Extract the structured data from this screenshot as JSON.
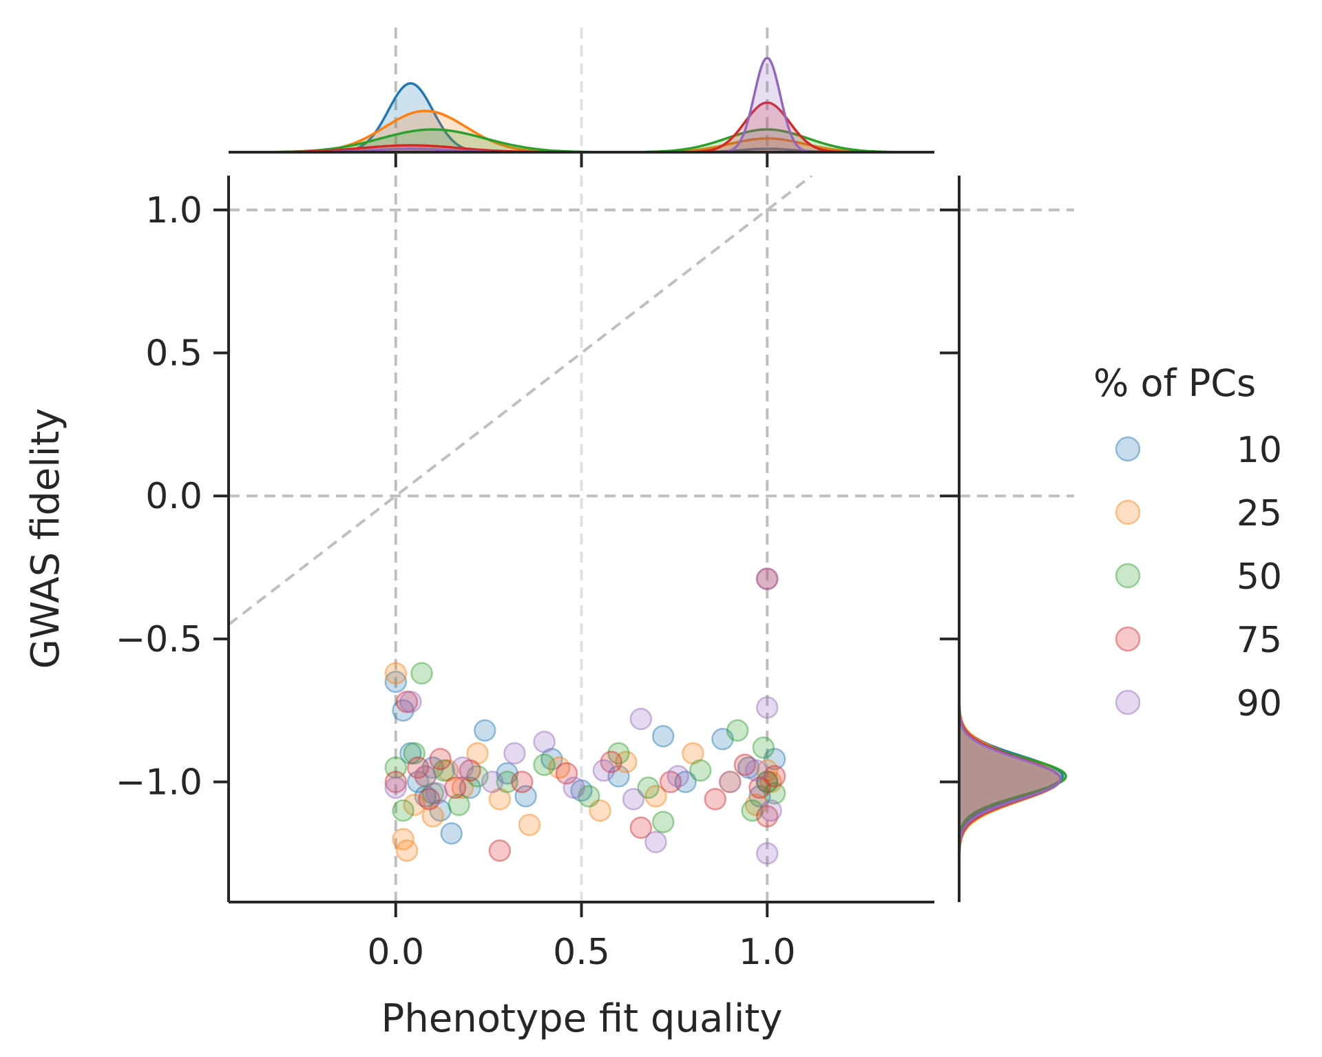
{
  "chart_data": {
    "type": "scatter",
    "xlabel": "Phenotype fit quality",
    "ylabel": "GWAS fidelity",
    "xlim": [
      -0.45,
      1.45
    ],
    "ylim": [
      -1.42,
      1.12
    ],
    "xticks": [
      0.0,
      0.5,
      1.0
    ],
    "xtick_labels": [
      "0.0",
      "0.5",
      "1.0"
    ],
    "yticks": [
      1.0,
      0.5,
      0.0,
      -0.5,
      -1.0
    ],
    "ytick_labels": [
      "1.0",
      "0.5",
      "0.0",
      "−0.5",
      "−1.0"
    ],
    "grid": false,
    "reference_lines": {
      "vertical_x": [
        0.0,
        0.5,
        1.0
      ],
      "horizontal_y": [
        1.0,
        0.0
      ],
      "diagonal": "y = x"
    },
    "legend": {
      "title": "% of PCs",
      "position": "right",
      "entries": [
        "10",
        "25",
        "50",
        "75",
        "90"
      ]
    },
    "colors": [
      "#1f77b4",
      "#ff7f0e",
      "#2ca02c",
      "#d62728",
      "#9467bd"
    ],
    "series": [
      {
        "name": "10",
        "x": [
          0.0,
          0.02,
          0.04,
          0.06,
          0.08,
          0.1,
          0.12,
          0.15,
          0.2,
          0.24,
          0.3,
          0.35,
          0.42,
          0.5,
          0.6,
          0.72,
          0.78,
          0.88,
          0.95,
          0.98,
          1.0,
          1.02
        ],
        "y": [
          -0.65,
          -0.75,
          -0.9,
          -1.0,
          -1.05,
          -0.95,
          -1.1,
          -1.18,
          -1.02,
          -0.82,
          -0.97,
          -1.05,
          -0.92,
          -1.03,
          -0.98,
          -0.84,
          -1.0,
          -0.85,
          -0.95,
          -1.05,
          -1.0,
          -0.92
        ],
        "kde_x_peak": 0.04,
        "kde_y_peak": -0.98
      },
      {
        "name": "25",
        "x": [
          0.0,
          0.02,
          0.03,
          0.05,
          0.08,
          0.1,
          0.14,
          0.18,
          0.22,
          0.28,
          0.36,
          0.44,
          0.55,
          0.62,
          0.7,
          0.8,
          0.9,
          0.97,
          1.0,
          1.01
        ],
        "y": [
          -0.62,
          -1.2,
          -1.24,
          -1.08,
          -0.98,
          -1.12,
          -0.96,
          -1.02,
          -0.9,
          -1.06,
          -1.15,
          -0.95,
          -1.1,
          -0.93,
          -1.05,
          -0.9,
          -1.0,
          -1.08,
          -0.96,
          -1.0
        ],
        "kde_x_peak": 0.08,
        "kde_y_peak": -0.99
      },
      {
        "name": "50",
        "x": [
          0.0,
          0.02,
          0.05,
          0.07,
          0.1,
          0.13,
          0.17,
          0.22,
          0.3,
          0.4,
          0.52,
          0.6,
          0.68,
          0.72,
          0.82,
          0.92,
          0.96,
          0.99,
          1.0,
          1.02
        ],
        "y": [
          -0.95,
          -1.1,
          -0.9,
          -0.62,
          -1.04,
          -0.96,
          -1.08,
          -0.98,
          -1.0,
          -0.94,
          -1.05,
          -0.9,
          -1.02,
          -1.14,
          -0.96,
          -0.82,
          -1.1,
          -0.88,
          -1.0,
          -1.04
        ],
        "kde_x_peak": 0.1,
        "kde_y_peak": -0.98
      },
      {
        "name": "75",
        "x": [
          0.0,
          0.03,
          0.06,
          0.09,
          0.12,
          0.16,
          0.2,
          0.28,
          0.34,
          0.46,
          0.58,
          0.66,
          0.74,
          0.86,
          0.94,
          0.98,
          1.0,
          1.0,
          1.02
        ],
        "y": [
          -1.0,
          -0.72,
          -0.95,
          -1.06,
          -0.92,
          -1.02,
          -0.96,
          -1.24,
          -1.0,
          -0.97,
          -0.93,
          -1.16,
          -1.0,
          -1.06,
          -0.94,
          -1.02,
          -0.29,
          -1.12,
          -0.98
        ],
        "kde_x_peak": 1.0,
        "kde_y_peak": -0.99
      },
      {
        "name": "90",
        "x": [
          0.0,
          0.04,
          0.08,
          0.11,
          0.18,
          0.26,
          0.32,
          0.4,
          0.48,
          0.56,
          0.64,
          0.66,
          0.7,
          0.76,
          0.9,
          0.97,
          1.0,
          1.0,
          1.0,
          1.01
        ],
        "y": [
          -1.02,
          -0.72,
          -0.98,
          -1.04,
          -0.95,
          -1.0,
          -0.9,
          -0.86,
          -1.02,
          -0.96,
          -1.06,
          -0.78,
          -1.21,
          -0.98,
          -1.0,
          -0.96,
          -0.29,
          -0.74,
          -1.25,
          -1.1
        ],
        "kde_x_peak": 1.0,
        "kde_y_peak": -0.99
      }
    ]
  }
}
